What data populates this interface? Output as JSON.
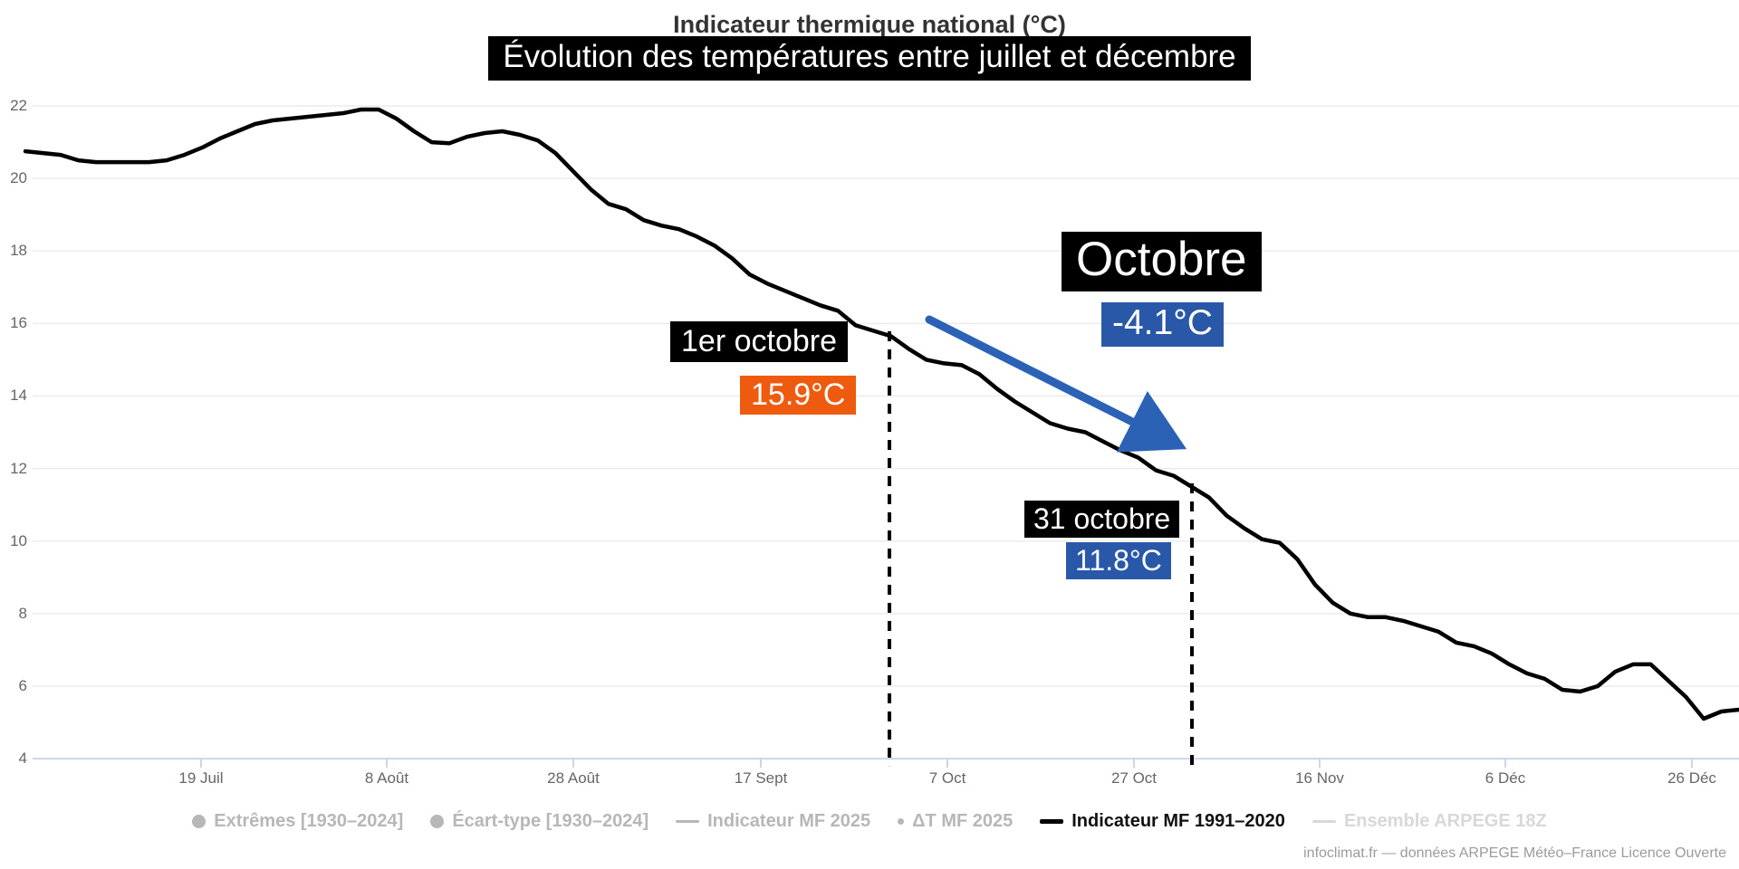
{
  "title": "Indicateur thermique national (°C)",
  "subtitle": "Évolution des températures entre juillet et décembre",
  "chart_data": {
    "type": "line",
    "title": "Indicateur thermique national (°C)",
    "subtitle": "Évolution des températures entre juillet et décembre",
    "x_range": "1 juillet – 31 décembre",
    "xticks": [
      "19 Juil",
      "8 Août",
      "28 Août",
      "17 Sept",
      "7 Oct",
      "27 Oct",
      "16 Nov",
      "6 Déc",
      "26 Déc"
    ],
    "yticks": [
      4,
      6,
      8,
      10,
      12,
      14,
      16,
      18,
      20,
      22
    ],
    "ylim": [
      4,
      22
    ],
    "grid": true,
    "legend_position": "bottom",
    "series": [
      {
        "name": "Indicateur MF 1991–2020",
        "color": "#000000",
        "values": [
          20.75,
          20.7,
          20.65,
          20.5,
          20.45,
          20.45,
          20.45,
          20.45,
          20.5,
          20.65,
          20.85,
          21.1,
          21.3,
          21.5,
          21.6,
          21.65,
          21.7,
          21.75,
          21.8,
          21.9,
          21.9,
          21.65,
          21.3,
          21.0,
          20.97,
          21.15,
          21.25,
          21.3,
          21.2,
          21.05,
          20.7,
          20.2,
          19.7,
          19.3,
          19.15,
          18.85,
          18.7,
          18.6,
          18.4,
          18.15,
          17.8,
          17.35,
          17.1,
          16.9,
          16.7,
          16.5,
          16.35,
          15.95,
          15.8,
          15.65,
          15.3,
          15.0,
          14.9,
          14.85,
          14.6,
          14.2,
          13.85,
          13.55,
          13.25,
          13.1,
          13.0,
          12.75,
          12.5,
          12.3,
          11.95,
          11.8,
          11.5,
          11.2,
          10.7,
          10.35,
          10.05,
          9.95,
          9.5,
          8.8,
          8.3,
          8.0,
          7.9,
          7.9,
          7.8,
          7.65,
          7.5,
          7.2,
          7.1,
          6.9,
          6.6,
          6.35,
          6.2,
          5.9,
          5.85,
          6.0,
          6.4,
          6.6,
          6.6,
          6.15,
          5.7,
          5.1,
          5.3,
          5.35
        ]
      }
    ],
    "annotations": [
      {
        "label": "1er octobre",
        "value": "15.9°C",
        "value_bg": "#ef5b0e",
        "label_bg": "#000000"
      },
      {
        "label": "Octobre",
        "value": "-4.1°C",
        "value_bg": "#2a58a9",
        "label_bg": "#000000"
      },
      {
        "label": "31 octobre",
        "value": "11.8°C",
        "value_bg": "#2a58a9",
        "label_bg": "#000000"
      }
    ],
    "arrow_color": "#2b62b5",
    "marker_line_style": "dashed-black"
  },
  "legend": {
    "items": [
      {
        "label": "Extrêmes [1930–2024]",
        "icon": "circle",
        "color": "#b7b7b7",
        "active": false
      },
      {
        "label": "Écart-type [1930–2024]",
        "icon": "circle",
        "color": "#b7b7b7",
        "active": false
      },
      {
        "label": "Indicateur MF 2025",
        "icon": "line",
        "color": "#b7b7b7",
        "active": false
      },
      {
        "label": "ΔT MF 2025",
        "icon": "dot",
        "color": "#b7b7b7",
        "active": false
      },
      {
        "label": "Indicateur MF 1991–2020",
        "icon": "line-bold",
        "color": "#000000",
        "active": true
      },
      {
        "label": "Ensemble ARPEGE 18Z",
        "icon": "line",
        "color": "#d8d8d8",
        "active": false
      }
    ]
  },
  "attribution": "infoclimat.fr — données ARPEGE Météo–France Licence Ouverte"
}
